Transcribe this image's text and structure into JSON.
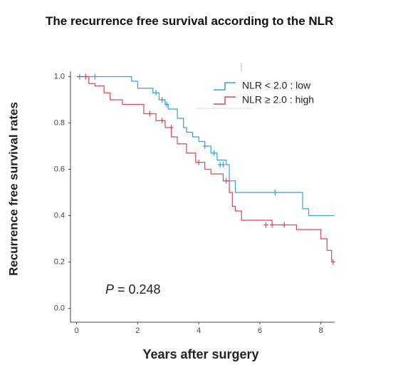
{
  "chart_data": {
    "type": "step",
    "title": "The recurrence free survival according to the NLR",
    "x_label": "Years after surgery",
    "y_label": "Recurrence free survival rates",
    "annotation": {
      "symbol": "P",
      "text": "= 0.248"
    },
    "xlim": [
      -0.2,
      8.45
    ],
    "ylim": [
      -0.06,
      1.06
    ],
    "xticks": [
      0,
      2,
      4,
      6,
      8
    ],
    "yticks": [
      {
        "value": 0,
        "label": "0.0"
      },
      {
        "value": 0.2,
        "label": "0.2"
      },
      {
        "value": 0.4,
        "label": "0.4"
      },
      {
        "value": 0.6,
        "label": "0.6"
      },
      {
        "value": 0.8,
        "label": "0.8"
      },
      {
        "value": 1,
        "label": "1.0"
      }
    ],
    "series": [
      {
        "name": "NLR < 2.0 : low",
        "color": "#3d9ee0",
        "x": [
          0,
          1.8,
          2.0,
          2.5,
          2.7,
          2.9,
          3.0,
          3.3,
          3.5,
          3.6,
          3.8,
          4.0,
          4.2,
          4.4,
          4.6,
          4.9,
          5.0,
          5.2,
          7.4,
          7.6,
          8.45
        ],
        "values": [
          1.0,
          0.98,
          0.95,
          0.93,
          0.9,
          0.88,
          0.86,
          0.82,
          0.78,
          0.76,
          0.74,
          0.72,
          0.7,
          0.67,
          0.64,
          0.62,
          0.55,
          0.5,
          0.43,
          0.4,
          0.4
        ],
        "censored_x": [
          0.1,
          0.6,
          2.6,
          2.8,
          2.95,
          4.2,
          4.5,
          4.7,
          4.8,
          6.5
        ],
        "censored_values": [
          1.0,
          1.0,
          0.93,
          0.9,
          0.88,
          0.7,
          0.67,
          0.62,
          0.62,
          0.5
        ]
      },
      {
        "name": "NLR ≥ 2.0 : high",
        "color": "#e2425c",
        "x": [
          0,
          0.4,
          0.6,
          0.9,
          1.1,
          1.5,
          2.2,
          2.6,
          2.9,
          3.1,
          3.3,
          3.6,
          3.9,
          4.2,
          4.4,
          4.8,
          5.0,
          5.1,
          5.2,
          5.4,
          6.4,
          7.2,
          8.0,
          8.2,
          8.35
        ],
        "values": [
          1.0,
          0.97,
          0.96,
          0.93,
          0.9,
          0.88,
          0.84,
          0.81,
          0.78,
          0.74,
          0.71,
          0.67,
          0.63,
          0.6,
          0.58,
          0.55,
          0.5,
          0.44,
          0.42,
          0.38,
          0.36,
          0.34,
          0.3,
          0.25,
          0.2
        ],
        "censored_x": [
          0.3,
          2.4,
          2.8,
          3.1,
          4.0,
          4.9,
          6.2,
          6.4,
          6.8,
          8.4
        ],
        "censored_values": [
          1.0,
          0.84,
          0.81,
          0.78,
          0.63,
          0.55,
          0.36,
          0.36,
          0.36,
          0.2
        ]
      }
    ]
  }
}
